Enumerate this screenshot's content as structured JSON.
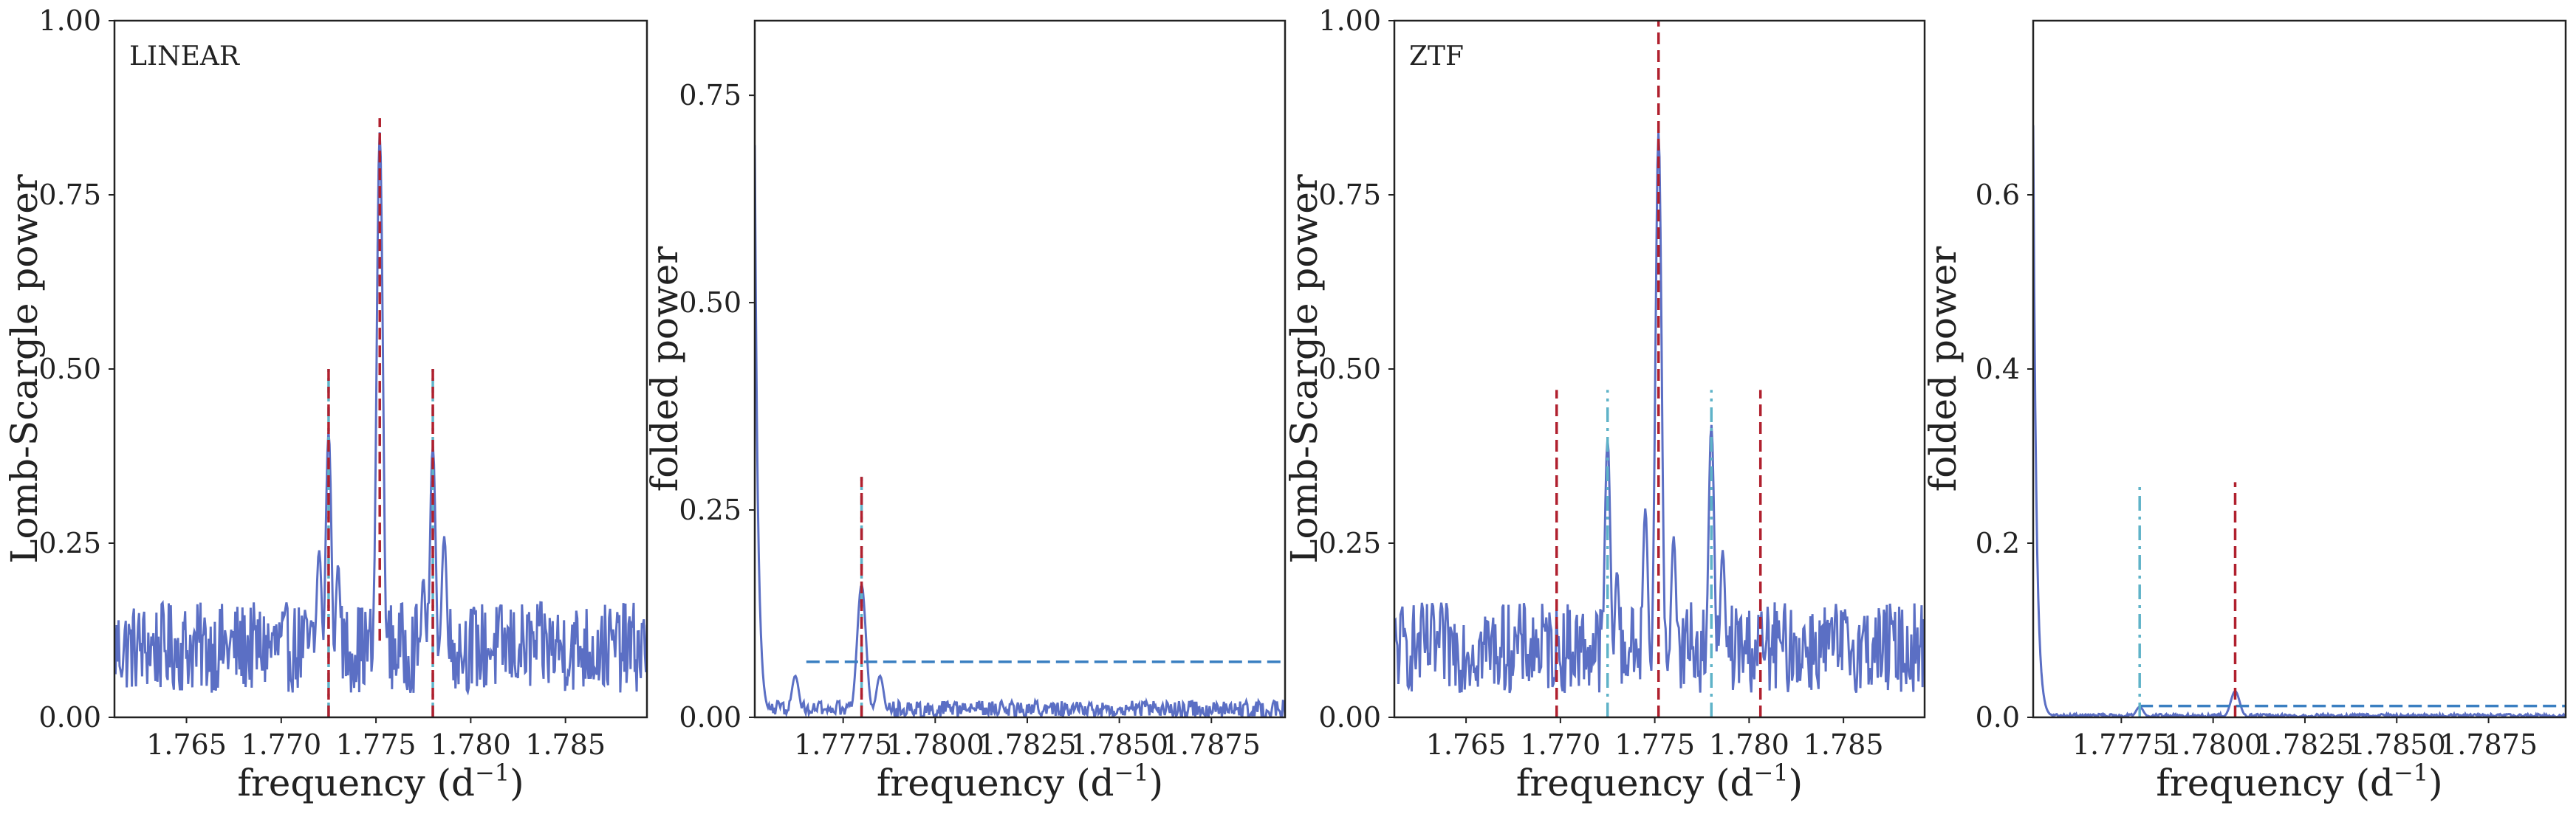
{
  "chart_data": [
    {
      "type": "line",
      "panel_label": "LINEAR",
      "xlabel": "frequency (d$^{-1}$)",
      "xlabel_main": "frequency (d",
      "xlabel_sup": "−1",
      "xlabel_close": ")",
      "ylabel": "Lomb-Scargle power",
      "xlim": [
        1.7612,
        1.7893
      ],
      "ylim": [
        0.0,
        1.0
      ],
      "xticks": [
        1.765,
        1.77,
        1.775,
        1.78,
        1.785
      ],
      "xtick_labels": [
        "1.765",
        "1.770",
        "1.775",
        "1.780",
        "1.785"
      ],
      "yticks": [
        0.0,
        0.25,
        0.5,
        0.75,
        1.0
      ],
      "ytick_labels": [
        "0.00",
        "0.25",
        "0.50",
        "0.75",
        "1.00"
      ],
      "grid": false,
      "series": [
        {
          "color": "#5b6fc4",
          "peaks": [
            [
              1.7752,
              0.84,
              0.00017
            ],
            [
              1.7725,
              0.41,
              0.00016
            ],
            [
              1.778,
              0.39,
              0.00016
            ],
            [
              1.772,
              0.24,
              0.00016
            ],
            [
              1.7786,
              0.26,
              0.00016
            ],
            [
              1.773,
              0.22,
              0.00014
            ],
            [
              1.7775,
              0.2,
              0.00014
            ]
          ],
          "noise_level": 0.1
        }
      ],
      "vlines": [
        {
          "x": 1.7752,
          "y0": 0.11,
          "y1": 0.86,
          "style": "dashed",
          "color": "#b0202e"
        },
        {
          "x": 1.7725,
          "y0": 0.0,
          "y1": 0.5,
          "style": "dashdot",
          "color": "#5fb3c8"
        },
        {
          "x": 1.778,
          "y0": 0.0,
          "y1": 0.5,
          "style": "dashdot",
          "color": "#5fb3c8"
        },
        {
          "x": 1.7725,
          "y0": 0.0,
          "y1": 0.5,
          "style": "dashed",
          "color": "#b0202e"
        },
        {
          "x": 1.778,
          "y0": 0.0,
          "y1": 0.5,
          "style": "dashed",
          "color": "#b0202e"
        }
      ]
    },
    {
      "type": "line",
      "panel_label": "",
      "xlabel": "frequency (d$^{-1}$)",
      "xlabel_main": "frequency (d",
      "xlabel_sup": "−1",
      "xlabel_close": ")",
      "ylabel": "folded power",
      "xlim": [
        1.7751,
        1.7895
      ],
      "ylim": [
        0.0,
        0.84
      ],
      "xticks": [
        1.7775,
        1.78,
        1.7825,
        1.785,
        1.7875
      ],
      "xtick_labels": [
        "1.7775",
        "1.7800",
        "1.7825",
        "1.7850",
        "1.7875"
      ],
      "yticks": [
        0.0,
        0.25,
        0.5,
        0.75
      ],
      "ytick_labels": [
        "0.00",
        "0.25",
        "0.50",
        "0.75"
      ],
      "grid": false,
      "series": [
        {
          "color": "#5b6fc4",
          "start_value": 0.69,
          "peaks": [
            [
              1.778,
              0.16,
              0.00012
            ],
            [
              1.7762,
              0.05,
              0.0001
            ],
            [
              1.7785,
              0.05,
              0.0001
            ]
          ],
          "noise_level": 0.02
        }
      ],
      "hlines": [
        {
          "y": 0.067,
          "x0": 1.7765,
          "x1": 1.7895,
          "style": "dashed",
          "color": "#3a7fc1"
        }
      ],
      "vlines": [
        {
          "x": 1.778,
          "y0": 0.0,
          "y1": 0.29,
          "style": "dashdot",
          "color": "#5fb3c8"
        },
        {
          "x": 1.778,
          "y0": 0.0,
          "y1": 0.29,
          "style": "dashed",
          "color": "#b0202e"
        }
      ]
    },
    {
      "type": "line",
      "panel_label": "ZTF",
      "xlabel": "frequency (d$^{-1}$)",
      "xlabel_main": "frequency (d",
      "xlabel_sup": "−1",
      "xlabel_close": ")",
      "ylabel": "Lomb-Scargle power",
      "xlim": [
        1.7612,
        1.7893
      ],
      "ylim": [
        0.0,
        1.0
      ],
      "xticks": [
        1.765,
        1.77,
        1.775,
        1.78,
        1.785
      ],
      "xtick_labels": [
        "1.765",
        "1.770",
        "1.775",
        "1.780",
        "1.785"
      ],
      "yticks": [
        0.0,
        0.25,
        0.5,
        0.75,
        1.0
      ],
      "ytick_labels": [
        "0.00",
        "0.25",
        "0.50",
        "0.75",
        "1.00"
      ],
      "grid": false,
      "series": [
        {
          "color": "#5b6fc4",
          "peaks": [
            [
              1.7752,
              0.84,
              0.00017
            ],
            [
              1.7725,
              0.4,
              0.00016
            ],
            [
              1.778,
              0.42,
              0.00016
            ],
            [
              1.7745,
              0.3,
              0.00015
            ],
            [
              1.776,
              0.26,
              0.00015
            ],
            [
              1.773,
              0.21,
              0.00014
            ],
            [
              1.7786,
              0.24,
              0.00015
            ]
          ],
          "noise_level": 0.1
        }
      ],
      "vlines": [
        {
          "x": 1.7752,
          "y0": 0.0,
          "y1": 1.0,
          "style": "dashed",
          "color": "#b0202e"
        },
        {
          "x": 1.7698,
          "y0": 0.0,
          "y1": 0.47,
          "style": "dashed",
          "color": "#b0202e"
        },
        {
          "x": 1.7806,
          "y0": 0.0,
          "y1": 0.47,
          "style": "dashed",
          "color": "#b0202e"
        },
        {
          "x": 1.7725,
          "y0": 0.0,
          "y1": 0.47,
          "style": "dashdot",
          "color": "#5fb3c8"
        },
        {
          "x": 1.778,
          "y0": 0.0,
          "y1": 0.47,
          "style": "dashdot",
          "color": "#5fb3c8"
        }
      ]
    },
    {
      "type": "line",
      "panel_label": "",
      "xlabel": "frequency (d$^{-1}$)",
      "xlabel_main": "frequency (d",
      "xlabel_sup": "−1",
      "xlabel_close": ")",
      "ylabel": "folded power",
      "xlim": [
        1.7751,
        1.7896
      ],
      "ylim": [
        0.0,
        0.8
      ],
      "xticks": [
        1.7775,
        1.78,
        1.7825,
        1.785,
        1.7875
      ],
      "xtick_labels": [
        "1.7775",
        "1.7800",
        "1.7825",
        "1.7850",
        "1.7875"
      ],
      "yticks": [
        0.0,
        0.2,
        0.4,
        0.6
      ],
      "ytick_labels": [
        "0.0",
        "0.2",
        "0.4",
        "0.6"
      ],
      "grid": false,
      "series": [
        {
          "color": "#5b6fc4",
          "start_value": 0.68,
          "peaks": [
            [
              1.7806,
              0.03,
              0.00012
            ],
            [
              1.778,
              0.012,
              0.0001
            ]
          ],
          "noise_level": 0.004
        }
      ],
      "hlines": [
        {
          "y": 0.013,
          "x0": 1.778,
          "x1": 1.7896,
          "style": "dashed",
          "color": "#3a7fc1"
        }
      ],
      "vlines": [
        {
          "x": 1.778,
          "y0": 0.0,
          "y1": 0.27,
          "style": "dashdot",
          "color": "#5fb3c8"
        },
        {
          "x": 1.7806,
          "y0": 0.0,
          "y1": 0.27,
          "style": "dashed",
          "color": "#b0202e"
        }
      ]
    }
  ]
}
